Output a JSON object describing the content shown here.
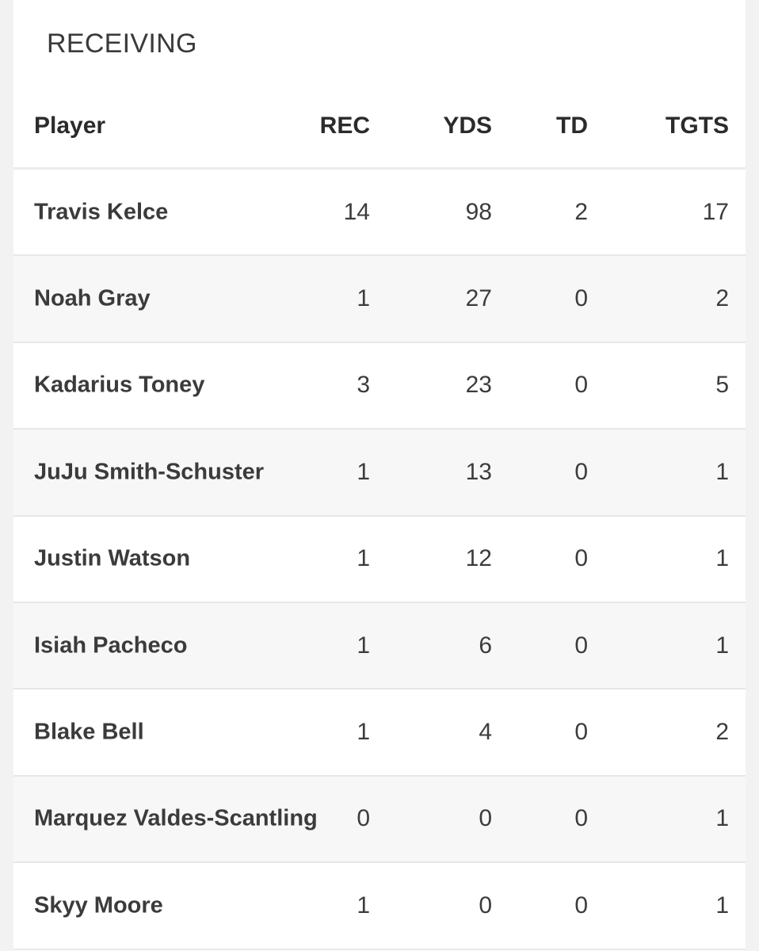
{
  "section": {
    "title": "RECEIVING"
  },
  "columns": {
    "player": "Player",
    "rec": "REC",
    "yds": "YDS",
    "td": "TD",
    "tgts": "TGTS"
  },
  "rows": [
    {
      "player": "Travis Kelce",
      "rec": "14",
      "yds": "98",
      "td": "2",
      "tgts": "17"
    },
    {
      "player": "Noah Gray",
      "rec": "1",
      "yds": "27",
      "td": "0",
      "tgts": "2"
    },
    {
      "player": "Kadarius Toney",
      "rec": "3",
      "yds": "23",
      "td": "0",
      "tgts": "5"
    },
    {
      "player": "JuJu Smith-Schuster",
      "rec": "1",
      "yds": "13",
      "td": "0",
      "tgts": "1"
    },
    {
      "player": "Justin Watson",
      "rec": "1",
      "yds": "12",
      "td": "0",
      "tgts": "1"
    },
    {
      "player": "Isiah Pacheco",
      "rec": "1",
      "yds": "6",
      "td": "0",
      "tgts": "1"
    },
    {
      "player": "Blake Bell",
      "rec": "1",
      "yds": "4",
      "td": "0",
      "tgts": "2"
    },
    {
      "player": "Marquez Valdes-Scantling",
      "rec": "0",
      "yds": "0",
      "td": "0",
      "tgts": "1"
    },
    {
      "player": "Skyy Moore",
      "rec": "1",
      "yds": "0",
      "td": "0",
      "tgts": "1"
    }
  ]
}
